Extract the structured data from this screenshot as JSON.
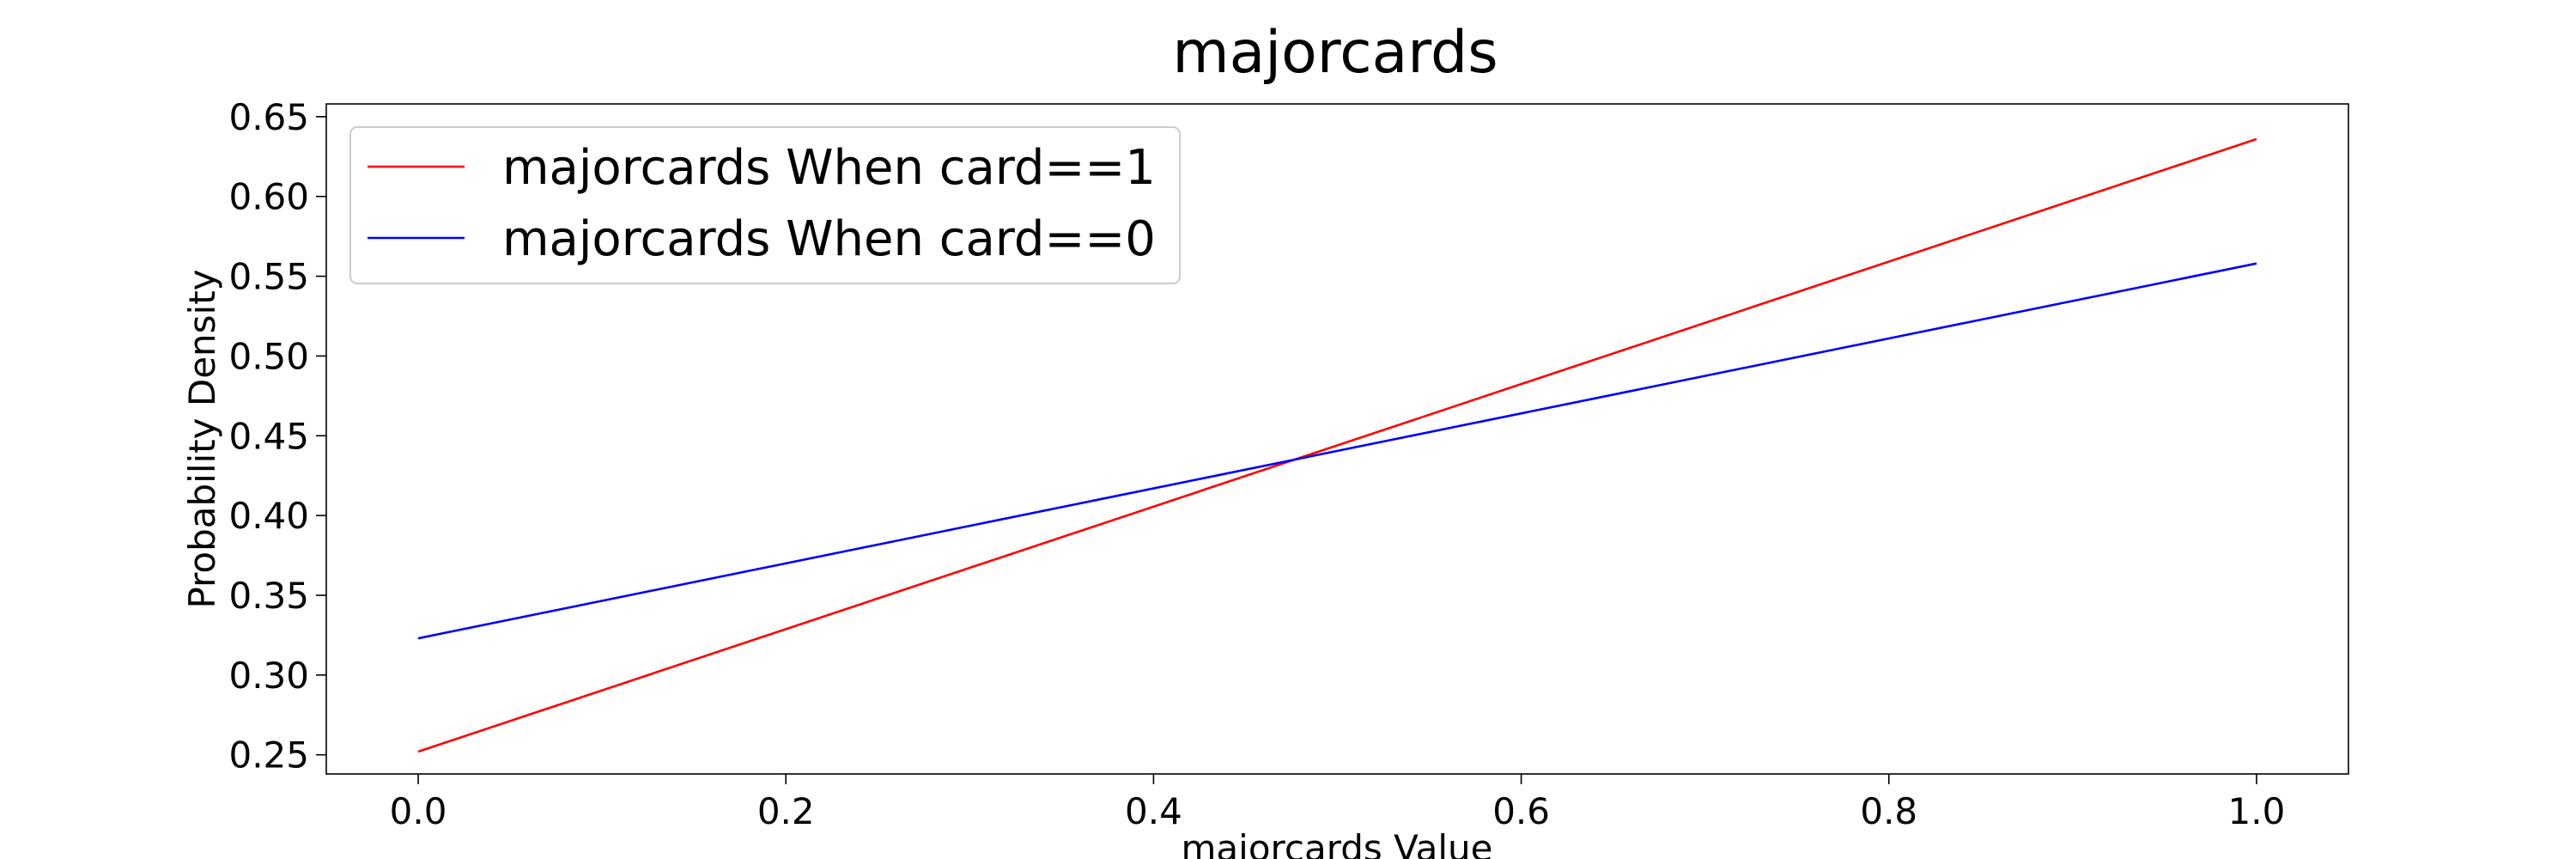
{
  "chart_data": {
    "type": "line",
    "title": "majorcards",
    "xlabel": "majorcards Value",
    "ylabel": "Probability Density",
    "xlim": [
      -0.05,
      1.05
    ],
    "ylim": [
      0.238,
      0.658
    ],
    "xticks": [
      0.0,
      0.2,
      0.4,
      0.6,
      0.8,
      1.0
    ],
    "xtick_labels": [
      "0.0",
      "0.2",
      "0.4",
      "0.6",
      "0.8",
      "1.0"
    ],
    "yticks": [
      0.25,
      0.3,
      0.35,
      0.4,
      0.45,
      0.5,
      0.55,
      0.6,
      0.65
    ],
    "ytick_labels": [
      "0.25",
      "0.30",
      "0.35",
      "0.40",
      "0.45",
      "0.50",
      "0.55",
      "0.60",
      "0.65"
    ],
    "grid": false,
    "legend_position": "upper-left",
    "series": [
      {
        "name": "majorcards When card==1",
        "color": "#ff0000",
        "x": [
          0.0,
          1.0
        ],
        "y": [
          0.252,
          0.636
        ]
      },
      {
        "name": "majorcards When card==0",
        "color": "#0000ff",
        "x": [
          0.0,
          1.0
        ],
        "y": [
          0.323,
          0.558
        ]
      }
    ]
  }
}
